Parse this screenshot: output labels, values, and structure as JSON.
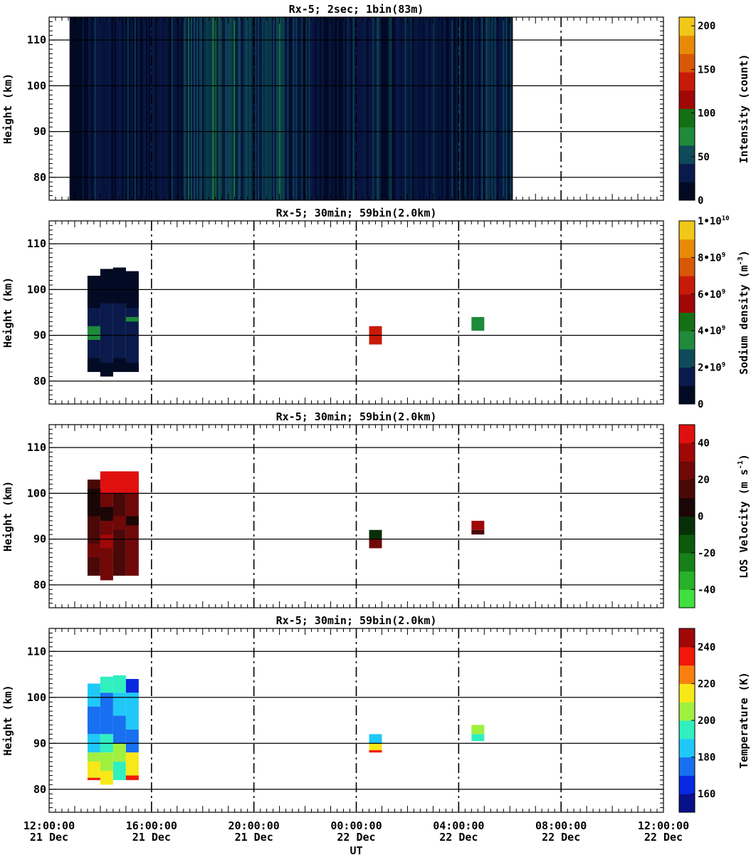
{
  "xaxis_label": "UT",
  "xaxis_range_hours": [
    0,
    24
  ],
  "xticks": [
    {
      "hour": 0,
      "time": "12:00:00",
      "date": "21 Dec"
    },
    {
      "hour": 4,
      "time": "16:00:00",
      "date": "21 Dec"
    },
    {
      "hour": 8,
      "time": "20:00:00",
      "date": "21 Dec"
    },
    {
      "hour": 12,
      "time": "00:00:00",
      "date": "22 Dec"
    },
    {
      "hour": 16,
      "time": "04:00:00",
      "date": "22 Dec"
    },
    {
      "hour": 20,
      "time": "08:00:00",
      "date": "22 Dec"
    },
    {
      "hour": 24,
      "time": "12:00:00",
      "date": "22 Dec"
    }
  ],
  "chart_data": [
    {
      "type": "heatmap",
      "title": "Rx-5;  2sec; 1bin(83m)",
      "ylabel": "Height (km)",
      "ylim": [
        75,
        115
      ],
      "yticks": [
        80,
        90,
        100,
        110
      ],
      "grid": true,
      "colorbar": {
        "label": "Intensity (count)",
        "range": [
          0,
          210
        ],
        "ticks": [
          {
            "value": 0,
            "label": "0"
          },
          {
            "value": 50,
            "label": "50"
          },
          {
            "value": 100,
            "label": "100"
          },
          {
            "value": 150,
            "label": "150"
          },
          {
            "value": 200,
            "label": "200"
          }
        ],
        "colors": [
          "#020a24",
          "#0a1a4a",
          "#0e4a5a",
          "#1e8a3a",
          "#147014",
          "#a00808",
          "#c81a08",
          "#d85808",
          "#e88a08",
          "#f0c818"
        ]
      },
      "data_time_range_hours": [
        0.8,
        18.1
      ],
      "intensity_profile": [
        {
          "h0": 0.8,
          "h1": 1.55,
          "level": 0
        },
        {
          "h0": 1.55,
          "h1": 3.0,
          "level": 1
        },
        {
          "h0": 3.0,
          "h1": 4.0,
          "level": 1
        },
        {
          "h0": 4.0,
          "h1": 5.2,
          "level": 1
        },
        {
          "h0": 5.2,
          "h1": 6.1,
          "level": 2
        },
        {
          "h0": 6.1,
          "h1": 8.2,
          "level": 2
        },
        {
          "h0": 8.2,
          "h1": 9.3,
          "level": 2
        },
        {
          "h0": 9.3,
          "h1": 13.0,
          "level": 1
        },
        {
          "h0": 13.0,
          "h1": 18.1,
          "level": 1
        }
      ]
    },
    {
      "type": "heatmap",
      "title": "Rx-5; 30min; 59bin(2.0km)",
      "ylabel": "Height (km)",
      "ylim": [
        75,
        115
      ],
      "yticks": [
        80,
        90,
        100,
        110
      ],
      "grid": true,
      "colorbar": {
        "label": "Sodium density (m-3)",
        "label_base": "Sodium density (m",
        "label_exp": "-3",
        "label_tail": ")",
        "range": [
          0,
          10000000000
        ],
        "ticks": [
          {
            "value": 0,
            "label": "0"
          },
          {
            "value": 2000000000,
            "label": "2•10",
            "exp": "9"
          },
          {
            "value": 4000000000,
            "label": "4•10",
            "exp": "9"
          },
          {
            "value": 6000000000,
            "label": "6•10",
            "exp": "9"
          },
          {
            "value": 8000000000,
            "label": "8•10",
            "exp": "9"
          },
          {
            "value": 10000000000,
            "label": "1•10",
            "exp": "10"
          }
        ],
        "colors": [
          "#020a24",
          "#0a1a4a",
          "#0e4a5a",
          "#1e8a3a",
          "#147014",
          "#a00808",
          "#c81a08",
          "#d85808",
          "#e88a08",
          "#f0c818"
        ]
      },
      "cells": [
        {
          "t0": 1.5,
          "t1": 2.0,
          "z0": 82,
          "z1": 103,
          "value": 1600000000
        },
        {
          "t0": 2.0,
          "t1": 2.5,
          "z0": 81,
          "z1": 104.5,
          "value": 1600000000
        },
        {
          "t0": 2.5,
          "t1": 3.0,
          "z0": 82,
          "z1": 104.8,
          "value": 1600000000
        },
        {
          "t0": 3.0,
          "t1": 3.5,
          "z0": 82,
          "z1": 104,
          "value": 1600000000
        },
        {
          "t0": 1.5,
          "t1": 2.0,
          "z0": 96,
          "z1": 103,
          "value": 300000000
        },
        {
          "t0": 2.0,
          "t1": 2.5,
          "z0": 97,
          "z1": 104.5,
          "value": 300000000
        },
        {
          "t0": 2.5,
          "t1": 3.0,
          "z0": 97,
          "z1": 104.8,
          "value": 300000000
        },
        {
          "t0": 3.0,
          "t1": 3.5,
          "z0": 96,
          "z1": 104,
          "value": 300000000
        },
        {
          "t0": 1.5,
          "t1": 2.0,
          "z0": 82,
          "z1": 85,
          "value": 300000000
        },
        {
          "t0": 2.0,
          "t1": 2.5,
          "z0": 81,
          "z1": 84,
          "value": 300000000
        },
        {
          "t0": 2.5,
          "t1": 3.0,
          "z0": 82,
          "z1": 85,
          "value": 300000000
        },
        {
          "t0": 3.0,
          "t1": 3.5,
          "z0": 82,
          "z1": 84,
          "value": 300000000
        },
        {
          "t0": 1.5,
          "t1": 2.0,
          "z0": 89,
          "z1": 92,
          "value": 3600000000
        },
        {
          "t0": 3.0,
          "t1": 3.5,
          "z0": 93,
          "z1": 94,
          "value": 3600000000
        },
        {
          "t0": 12.5,
          "t1": 13.0,
          "z0": 88,
          "z1": 92,
          "value": 6500000000
        },
        {
          "t0": 16.5,
          "t1": 17.0,
          "z0": 91,
          "z1": 94,
          "value": 3600000000
        }
      ]
    },
    {
      "type": "heatmap",
      "title": "Rx-5; 30min; 59bin(2.0km)",
      "ylabel": "Height (km)",
      "ylim": [
        75,
        115
      ],
      "yticks": [
        80,
        90,
        100,
        110
      ],
      "grid": true,
      "colorbar": {
        "label": "LOS Velocity (m s-1)",
        "label_base": "LOS Velocity (m s",
        "label_exp": "-1",
        "label_tail": ")",
        "range": [
          -50,
          50
        ],
        "ticks": [
          {
            "value": -40,
            "label": "-40"
          },
          {
            "value": -20,
            "label": "-20"
          },
          {
            "value": 0,
            "label": "0"
          },
          {
            "value": 20,
            "label": "20"
          },
          {
            "value": 40,
            "label": "40"
          }
        ],
        "colors": [
          "#40e040",
          "#28b028",
          "#188018",
          "#0c5a0c",
          "#083008",
          "#1a0606",
          "#4a0808",
          "#700808",
          "#a00808",
          "#e01010"
        ]
      },
      "cells": [
        {
          "t0": 1.5,
          "t1": 2.0,
          "z0": 82,
          "z1": 103,
          "value": 15
        },
        {
          "t0": 2.0,
          "t1": 2.5,
          "z0": 81,
          "z1": 104.5,
          "value": 20
        },
        {
          "t0": 2.5,
          "t1": 3.0,
          "z0": 82,
          "z1": 104.8,
          "value": 18
        },
        {
          "t0": 3.0,
          "t1": 3.5,
          "z0": 82,
          "z1": 104,
          "value": 22
        },
        {
          "t0": 2.0,
          "t1": 3.5,
          "z0": 100,
          "z1": 104.8,
          "value": 48
        },
        {
          "t0": 1.5,
          "t1": 2.0,
          "z0": 95,
          "z1": 101,
          "value": 5
        },
        {
          "t0": 2.0,
          "t1": 2.5,
          "z0": 94,
          "z1": 97,
          "value": 5
        },
        {
          "t0": 2.5,
          "t1": 3.0,
          "z0": 92,
          "z1": 95,
          "value": 28
        },
        {
          "t0": 1.5,
          "t1": 2.0,
          "z0": 86,
          "z1": 89,
          "value": 28
        },
        {
          "t0": 2.0,
          "t1": 2.5,
          "z0": 88,
          "z1": 91,
          "value": 35
        },
        {
          "t0": 3.0,
          "t1": 3.5,
          "z0": 93,
          "z1": 95,
          "value": 5
        },
        {
          "t0": 12.5,
          "t1": 13.0,
          "z0": 90,
          "z1": 92,
          "value": -5
        },
        {
          "t0": 12.5,
          "t1": 13.0,
          "z0": 88,
          "z1": 90,
          "value": 20
        },
        {
          "t0": 16.5,
          "t1": 17.0,
          "z0": 92,
          "z1": 94,
          "value": 38
        },
        {
          "t0": 16.5,
          "t1": 17.0,
          "z0": 91,
          "z1": 92,
          "value": 15
        }
      ]
    },
    {
      "type": "heatmap",
      "title": "Rx-5; 30min; 59bin(2.0km)",
      "ylabel": "Height (km)",
      "ylim": [
        75,
        115
      ],
      "yticks": [
        80,
        90,
        100,
        110
      ],
      "grid": true,
      "colorbar": {
        "label": "Temperature (K)",
        "range": [
          150,
          250
        ],
        "ticks": [
          {
            "value": 160,
            "label": "160"
          },
          {
            "value": 180,
            "label": "180"
          },
          {
            "value": 200,
            "label": "200"
          },
          {
            "value": 220,
            "label": "220"
          },
          {
            "value": 240,
            "label": "240"
          }
        ],
        "colors": [
          "#08108a",
          "#0828e0",
          "#1870f0",
          "#20c8f8",
          "#30f0c0",
          "#a0f040",
          "#f8e818",
          "#f88010",
          "#f01808",
          "#a00808"
        ]
      },
      "cells": [
        {
          "t0": 1.5,
          "t1": 2.0,
          "z0": 98,
          "z1": 103,
          "value": 185
        },
        {
          "t0": 1.5,
          "t1": 2.0,
          "z0": 92,
          "z1": 98,
          "value": 172
        },
        {
          "t0": 1.5,
          "t1": 2.0,
          "z0": 88,
          "z1": 92,
          "value": 188
        },
        {
          "t0": 1.5,
          "t1": 2.0,
          "z0": 86,
          "z1": 88,
          "value": 205
        },
        {
          "t0": 1.5,
          "t1": 2.0,
          "z0": 84,
          "z1": 86,
          "value": 212
        },
        {
          "t0": 1.5,
          "t1": 2.0,
          "z0": 82.5,
          "z1": 84,
          "value": 218
        },
        {
          "t0": 1.5,
          "t1": 2.0,
          "z0": 82,
          "z1": 82.5,
          "value": 232
        },
        {
          "t0": 2.0,
          "t1": 2.5,
          "z0": 101,
          "z1": 104.5,
          "value": 195
        },
        {
          "t0": 2.0,
          "t1": 2.5,
          "z0": 92,
          "z1": 101,
          "value": 172
        },
        {
          "t0": 2.0,
          "t1": 2.5,
          "z0": 88,
          "z1": 92,
          "value": 190
        },
        {
          "t0": 2.0,
          "t1": 2.5,
          "z0": 84,
          "z1": 88,
          "value": 208
        },
        {
          "t0": 2.0,
          "t1": 2.5,
          "z0": 81,
          "z1": 84,
          "value": 218
        },
        {
          "t0": 2.5,
          "t1": 3.0,
          "z0": 101,
          "z1": 104.8,
          "value": 198
        },
        {
          "t0": 2.5,
          "t1": 3.0,
          "z0": 96,
          "z1": 101,
          "value": 185
        },
        {
          "t0": 2.5,
          "t1": 3.0,
          "z0": 90,
          "z1": 96,
          "value": 175
        },
        {
          "t0": 2.5,
          "t1": 3.0,
          "z0": 86,
          "z1": 90,
          "value": 200
        },
        {
          "t0": 2.5,
          "t1": 3.0,
          "z0": 82,
          "z1": 86,
          "value": 190
        },
        {
          "t0": 3.0,
          "t1": 3.5,
          "z0": 101,
          "z1": 104,
          "value": 162
        },
        {
          "t0": 3.0,
          "t1": 3.5,
          "z0": 93,
          "z1": 101,
          "value": 182
        },
        {
          "t0": 3.0,
          "t1": 3.5,
          "z0": 88,
          "z1": 93,
          "value": 178
        },
        {
          "t0": 3.0,
          "t1": 3.5,
          "z0": 83,
          "z1": 88,
          "value": 218
        },
        {
          "t0": 3.0,
          "t1": 3.5,
          "z0": 82,
          "z1": 83,
          "value": 232
        },
        {
          "t0": 12.5,
          "t1": 13.0,
          "z0": 90,
          "z1": 92,
          "value": 185
        },
        {
          "t0": 12.5,
          "t1": 13.0,
          "z0": 88.5,
          "z1": 90,
          "value": 212
        },
        {
          "t0": 12.5,
          "t1": 13.0,
          "z0": 88,
          "z1": 88.5,
          "value": 232
        },
        {
          "t0": 16.5,
          "t1": 17.0,
          "z0": 92,
          "z1": 94,
          "value": 205
        },
        {
          "t0": 16.5,
          "t1": 17.0,
          "z0": 90.5,
          "z1": 92,
          "value": 195
        }
      ]
    }
  ]
}
